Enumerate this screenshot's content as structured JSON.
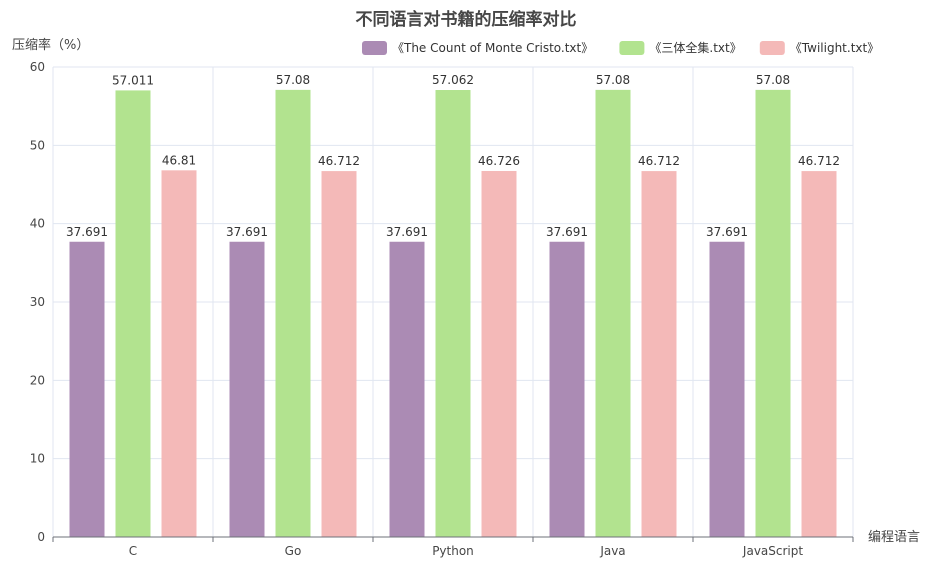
{
  "chart_data": {
    "type": "bar",
    "title": "不同语言对书籍的压缩率对比",
    "ylabel": "压缩率（%）",
    "xlabel": "编程语言",
    "categories": [
      "C",
      "Go",
      "Python",
      "Java",
      "JavaScript"
    ],
    "series": [
      {
        "name": "《The Count of Monte Cristo.txt》",
        "color": "#ab8bb4",
        "values": [
          37.691,
          37.691,
          37.691,
          37.691,
          37.691
        ]
      },
      {
        "name": "《三体全集.txt》",
        "color": "#b2e38f",
        "values": [
          57.011,
          57.08,
          57.062,
          57.08,
          57.08
        ]
      },
      {
        "name": "《Twilight.txt》",
        "color": "#f4b9b8",
        "values": [
          46.81,
          46.712,
          46.726,
          46.712,
          46.712
        ]
      }
    ],
    "ylim": [
      0,
      60
    ],
    "yticks": [
      0,
      10,
      20,
      30,
      40,
      50,
      60
    ],
    "grid": true,
    "legend_position": "top-right",
    "show_data_labels": true
  }
}
